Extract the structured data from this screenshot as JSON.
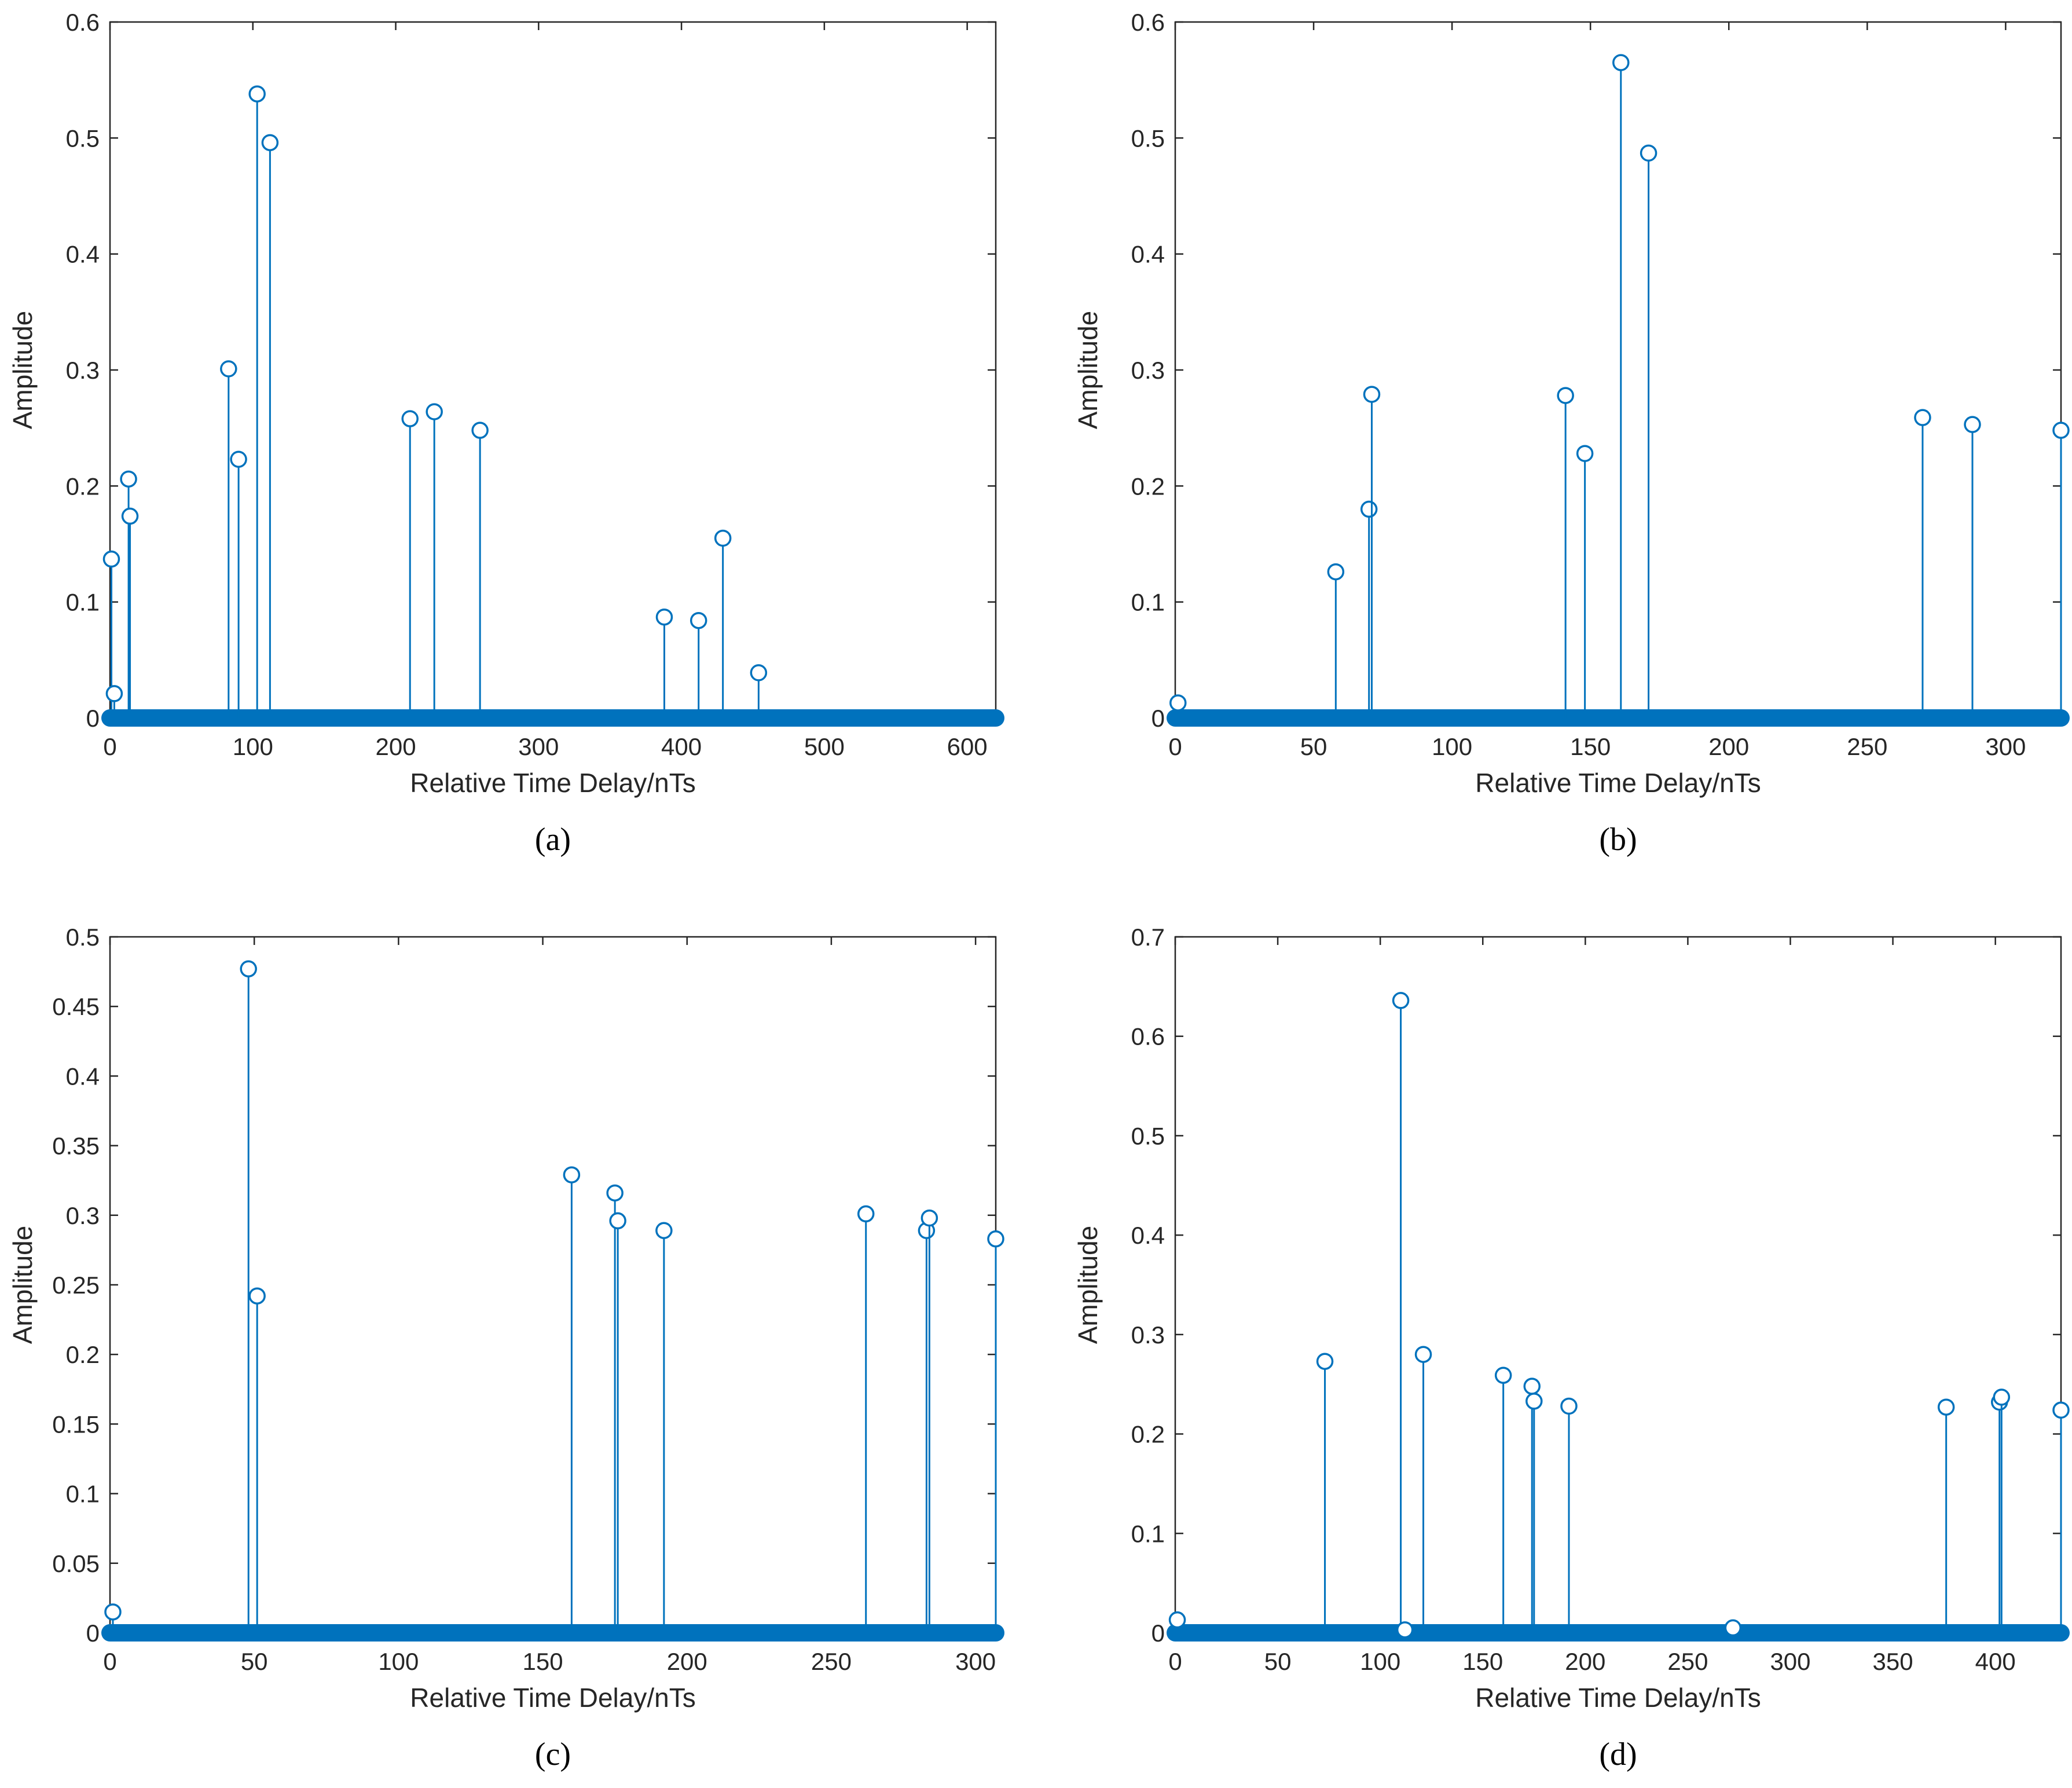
{
  "accent_color": "#0072BD",
  "chart_data": [
    {
      "type": "stem",
      "caption": "(a)",
      "xlabel": "Relative Time Delay/nTs",
      "ylabel": "Amplitude",
      "xlim": [
        0,
        620
      ],
      "ylim": [
        0,
        0.6
      ],
      "xticks": [
        0,
        100,
        200,
        300,
        400,
        500,
        600
      ],
      "yticks": [
        0,
        0.1,
        0.2,
        0.3,
        0.4,
        0.5,
        0.6
      ],
      "xtick_labels": [
        "0",
        "100",
        "200",
        "300",
        "400",
        "500",
        "600"
      ],
      "ytick_labels": [
        "0",
        "0.1",
        "0.2",
        "0.3",
        "0.4",
        "0.5",
        "0.6"
      ],
      "x": [
        1,
        3,
        13,
        14,
        83,
        90,
        103,
        112,
        210,
        227,
        259,
        388,
        412,
        429,
        454
      ],
      "values": [
        0.137,
        0.021,
        0.206,
        0.174,
        0.301,
        0.223,
        0.538,
        0.496,
        0.258,
        0.264,
        0.248,
        0.087,
        0.084,
        0.155,
        0.039
      ]
    },
    {
      "type": "stem",
      "caption": "(b)",
      "xlabel": "Relative Time Delay/nTs",
      "ylabel": "Amplitude",
      "xlim": [
        0,
        320
      ],
      "ylim": [
        0,
        0.6
      ],
      "xticks": [
        0,
        50,
        100,
        150,
        200,
        250,
        300
      ],
      "yticks": [
        0,
        0.1,
        0.2,
        0.3,
        0.4,
        0.5,
        0.6
      ],
      "xtick_labels": [
        "0",
        "50",
        "100",
        "150",
        "200",
        "250",
        "300"
      ],
      "ytick_labels": [
        "0",
        "0.1",
        "0.2",
        "0.3",
        "0.4",
        "0.5",
        "0.6"
      ],
      "x": [
        1,
        58,
        70,
        71,
        141,
        148,
        161,
        171,
        270,
        288,
        320
      ],
      "values": [
        0.013,
        0.126,
        0.18,
        0.279,
        0.278,
        0.228,
        0.565,
        0.487,
        0.259,
        0.253,
        0.248
      ]
    },
    {
      "type": "stem",
      "caption": "(c)",
      "xlabel": "Relative Time Delay/nTs",
      "ylabel": "Amplitude",
      "xlim": [
        0,
        307
      ],
      "ylim": [
        0,
        0.5
      ],
      "xticks": [
        0,
        50,
        100,
        150,
        200,
        250,
        300
      ],
      "yticks": [
        0,
        0.05,
        0.1,
        0.15,
        0.2,
        0.25,
        0.3,
        0.35,
        0.4,
        0.45,
        0.5
      ],
      "xtick_labels": [
        "0",
        "50",
        "100",
        "150",
        "200",
        "250",
        "300"
      ],
      "ytick_labels": [
        "0",
        "0.05",
        "0.1",
        "0.15",
        "0.2",
        "0.25",
        "0.3",
        "0.35",
        "0.4",
        "0.45",
        "0.5"
      ],
      "x": [
        1,
        48,
        51,
        160,
        175,
        176,
        192,
        262,
        283,
        284,
        307
      ],
      "values": [
        0.015,
        0.477,
        0.242,
        0.329,
        0.316,
        0.296,
        0.289,
        0.301,
        0.289,
        0.298,
        0.283
      ]
    },
    {
      "type": "stem",
      "caption": "(d)",
      "xlabel": "Relative Time Delay/nTs",
      "ylabel": "Amplitude",
      "xlim": [
        0,
        432
      ],
      "ylim": [
        0,
        0.7
      ],
      "xticks": [
        0,
        50,
        100,
        150,
        200,
        250,
        300,
        350,
        400
      ],
      "yticks": [
        0,
        0.1,
        0.2,
        0.3,
        0.4,
        0.5,
        0.6,
        0.7
      ],
      "xtick_labels": [
        "0",
        "50",
        "100",
        "150",
        "200",
        "250",
        "300",
        "350",
        "400"
      ],
      "ytick_labels": [
        "0",
        "0.1",
        "0.2",
        "0.3",
        "0.4",
        "0.5",
        "0.6",
        "0.7"
      ],
      "x": [
        1,
        73,
        110,
        112,
        121,
        160,
        174,
        175,
        192,
        272,
        376,
        402,
        403,
        432
      ],
      "values": [
        0.013,
        0.273,
        0.636,
        0.003,
        0.28,
        0.259,
        0.248,
        0.233,
        0.228,
        0.005,
        0.227,
        0.232,
        0.237,
        0.224
      ]
    }
  ]
}
